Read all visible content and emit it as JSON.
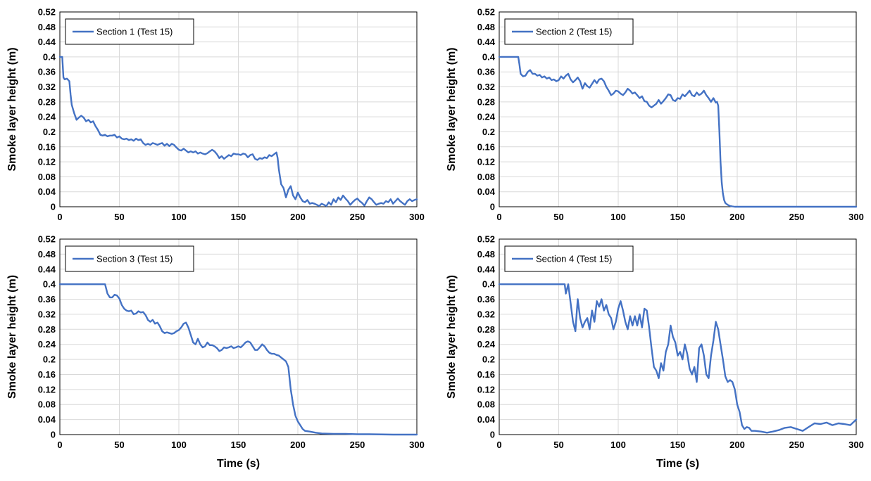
{
  "chart_data": [
    {
      "type": "line",
      "xlabel": "",
      "ylabel": "Smoke layer height (m)",
      "xlim": [
        0,
        300
      ],
      "ylim": [
        0,
        0.52
      ],
      "xticks": [
        "0",
        "50",
        "100",
        "150",
        "200",
        "250",
        "300"
      ],
      "yticks": [
        "0",
        "0.04",
        "0.08",
        "0.12",
        "0.16",
        "0.2",
        "0.24",
        "0.28",
        "0.32",
        "0.36",
        "0.4",
        "0.44",
        "0.48",
        "0.52"
      ],
      "grid": true,
      "legend": "top-left",
      "series": [
        {
          "name": "Section 1 (Test 15)",
          "color": "#4472c4",
          "x": [
            0,
            2,
            3,
            4,
            6,
            8,
            9,
            10,
            12,
            14,
            16,
            18,
            20,
            22,
            24,
            26,
            28,
            30,
            32,
            34,
            36,
            38,
            40,
            42,
            44,
            46,
            48,
            50,
            52,
            54,
            56,
            58,
            60,
            62,
            64,
            66,
            68,
            70,
            72,
            74,
            76,
            78,
            80,
            82,
            84,
            86,
            88,
            90,
            92,
            94,
            96,
            98,
            100,
            102,
            104,
            106,
            108,
            110,
            112,
            114,
            116,
            118,
            120,
            122,
            124,
            126,
            128,
            130,
            132,
            134,
            136,
            138,
            140,
            142,
            144,
            146,
            148,
            150,
            152,
            154,
            156,
            158,
            160,
            162,
            164,
            166,
            168,
            170,
            172,
            174,
            176,
            178,
            180,
            182,
            183,
            184,
            186,
            188,
            190,
            192,
            194,
            196,
            198,
            200,
            202,
            204,
            206,
            208,
            210,
            212,
            214,
            216,
            218,
            220,
            222,
            224,
            226,
            228,
            230,
            232,
            234,
            236,
            238,
            240,
            242,
            244,
            246,
            248,
            250,
            252,
            254,
            256,
            258,
            260,
            262,
            264,
            266,
            268,
            270,
            272,
            274,
            276,
            278,
            280,
            282,
            284,
            286,
            288,
            290,
            292,
            294,
            296,
            298,
            300
          ],
          "y": [
            0.4,
            0.4,
            0.345,
            0.34,
            0.342,
            0.335,
            0.3,
            0.272,
            0.25,
            0.232,
            0.238,
            0.243,
            0.238,
            0.228,
            0.232,
            0.225,
            0.228,
            0.215,
            0.205,
            0.192,
            0.19,
            0.192,
            0.188,
            0.19,
            0.19,
            0.192,
            0.185,
            0.188,
            0.182,
            0.18,
            0.182,
            0.178,
            0.18,
            0.176,
            0.182,
            0.178,
            0.18,
            0.17,
            0.165,
            0.168,
            0.165,
            0.17,
            0.168,
            0.165,
            0.168,
            0.17,
            0.163,
            0.168,
            0.162,
            0.168,
            0.165,
            0.158,
            0.152,
            0.15,
            0.155,
            0.15,
            0.145,
            0.148,
            0.145,
            0.148,
            0.142,
            0.145,
            0.142,
            0.14,
            0.143,
            0.148,
            0.152,
            0.148,
            0.14,
            0.13,
            0.135,
            0.128,
            0.133,
            0.138,
            0.135,
            0.142,
            0.14,
            0.14,
            0.138,
            0.142,
            0.14,
            0.132,
            0.138,
            0.14,
            0.128,
            0.125,
            0.13,
            0.128,
            0.132,
            0.13,
            0.138,
            0.135,
            0.14,
            0.145,
            0.13,
            0.1,
            0.06,
            0.05,
            0.025,
            0.045,
            0.055,
            0.03,
            0.02,
            0.038,
            0.025,
            0.015,
            0.012,
            0.018,
            0.008,
            0.01,
            0.008,
            0.005,
            0.002,
            0.008,
            0.005,
            0.002,
            0.012,
            0.005,
            0.02,
            0.012,
            0.025,
            0.018,
            0.03,
            0.022,
            0.015,
            0.005,
            0.012,
            0.018,
            0.022,
            0.015,
            0.01,
            0.003,
            0.015,
            0.025,
            0.02,
            0.012,
            0.005,
            0.008,
            0.01,
            0.008,
            0.015,
            0.012,
            0.02,
            0.008,
            0.015,
            0.022,
            0.015,
            0.01,
            0.005,
            0.015,
            0.02,
            0.015,
            0.018,
            0.02
          ]
        }
      ]
    },
    {
      "type": "line",
      "xlabel": "",
      "ylabel": "Smoke layer height (m)",
      "xlim": [
        0,
        300
      ],
      "ylim": [
        0,
        0.52
      ],
      "xticks": [
        "0",
        "50",
        "100",
        "150",
        "200",
        "250",
        "300"
      ],
      "yticks": [
        "0",
        "0.04",
        "0.08",
        "0.12",
        "0.16",
        "0.2",
        "0.24",
        "0.28",
        "0.32",
        "0.36",
        "0.4",
        "0.44",
        "0.48",
        "0.52"
      ],
      "grid": true,
      "legend": "top-left",
      "series": [
        {
          "name": "Section 2 (Test 15)",
          "color": "#4472c4",
          "x": [
            0,
            10,
            16,
            17,
            18,
            20,
            22,
            24,
            26,
            28,
            30,
            32,
            34,
            36,
            38,
            40,
            42,
            44,
            46,
            48,
            50,
            52,
            54,
            56,
            58,
            60,
            62,
            64,
            66,
            68,
            70,
            72,
            74,
            76,
            78,
            80,
            82,
            84,
            86,
            88,
            90,
            92,
            94,
            96,
            98,
            100,
            102,
            104,
            106,
            108,
            110,
            112,
            114,
            116,
            118,
            120,
            122,
            124,
            126,
            128,
            130,
            132,
            134,
            136,
            138,
            140,
            142,
            144,
            146,
            148,
            150,
            152,
            154,
            156,
            158,
            160,
            162,
            164,
            166,
            168,
            170,
            172,
            174,
            176,
            178,
            180,
            182,
            183,
            184,
            185,
            186,
            187,
            188,
            189,
            190,
            192,
            194,
            196,
            198,
            200,
            210,
            230,
            250,
            270,
            300
          ],
          "y": [
            0.4,
            0.4,
            0.4,
            0.38,
            0.355,
            0.348,
            0.35,
            0.36,
            0.365,
            0.355,
            0.355,
            0.35,
            0.352,
            0.345,
            0.348,
            0.342,
            0.345,
            0.338,
            0.34,
            0.335,
            0.338,
            0.348,
            0.342,
            0.35,
            0.355,
            0.34,
            0.332,
            0.338,
            0.345,
            0.335,
            0.315,
            0.33,
            0.322,
            0.318,
            0.328,
            0.338,
            0.33,
            0.34,
            0.342,
            0.335,
            0.32,
            0.31,
            0.298,
            0.302,
            0.31,
            0.308,
            0.302,
            0.298,
            0.305,
            0.315,
            0.31,
            0.302,
            0.305,
            0.298,
            0.29,
            0.295,
            0.282,
            0.28,
            0.27,
            0.265,
            0.27,
            0.275,
            0.285,
            0.275,
            0.282,
            0.29,
            0.3,
            0.298,
            0.285,
            0.282,
            0.29,
            0.288,
            0.3,
            0.295,
            0.302,
            0.31,
            0.298,
            0.295,
            0.305,
            0.298,
            0.302,
            0.31,
            0.298,
            0.29,
            0.28,
            0.29,
            0.278,
            0.28,
            0.27,
            0.2,
            0.12,
            0.065,
            0.035,
            0.018,
            0.01,
            0.005,
            0.002,
            0.001,
            0.0,
            0.0,
            0.0,
            0.0,
            0.0,
            0.0,
            0.0
          ]
        }
      ]
    },
    {
      "type": "line",
      "xlabel": "Time (s)",
      "ylabel": "Smoke layer height (m)",
      "xlim": [
        0,
        300
      ],
      "ylim": [
        0,
        0.52
      ],
      "xticks": [
        "0",
        "50",
        "100",
        "150",
        "200",
        "250",
        "300"
      ],
      "yticks": [
        "0",
        "0.04",
        "0.08",
        "0.12",
        "0.16",
        "0.2",
        "0.24",
        "0.28",
        "0.32",
        "0.36",
        "0.4",
        "0.44",
        "0.48",
        "0.52"
      ],
      "grid": true,
      "legend": "top-left",
      "series": [
        {
          "name": "Section 3 (Test 15)",
          "color": "#4472c4",
          "x": [
            0,
            20,
            38,
            40,
            42,
            44,
            46,
            48,
            50,
            52,
            54,
            56,
            58,
            60,
            62,
            64,
            66,
            68,
            70,
            72,
            74,
            76,
            78,
            80,
            82,
            84,
            86,
            88,
            90,
            92,
            94,
            96,
            98,
            100,
            102,
            104,
            106,
            108,
            110,
            112,
            114,
            116,
            118,
            120,
            122,
            124,
            126,
            128,
            130,
            132,
            134,
            136,
            138,
            140,
            142,
            144,
            146,
            148,
            150,
            152,
            154,
            156,
            158,
            160,
            162,
            164,
            166,
            168,
            170,
            172,
            174,
            176,
            178,
            180,
            182,
            184,
            186,
            188,
            190,
            192,
            193,
            194,
            195,
            196,
            198,
            200,
            202,
            204,
            206,
            210,
            215,
            220,
            230,
            240,
            250,
            260,
            280,
            300
          ],
          "y": [
            0.4,
            0.4,
            0.4,
            0.375,
            0.365,
            0.365,
            0.372,
            0.37,
            0.362,
            0.345,
            0.335,
            0.33,
            0.328,
            0.33,
            0.32,
            0.322,
            0.328,
            0.325,
            0.326,
            0.318,
            0.305,
            0.3,
            0.305,
            0.295,
            0.298,
            0.288,
            0.275,
            0.27,
            0.272,
            0.27,
            0.268,
            0.27,
            0.275,
            0.278,
            0.285,
            0.295,
            0.298,
            0.285,
            0.265,
            0.245,
            0.24,
            0.255,
            0.24,
            0.232,
            0.235,
            0.245,
            0.238,
            0.238,
            0.235,
            0.23,
            0.222,
            0.225,
            0.232,
            0.23,
            0.232,
            0.235,
            0.23,
            0.232,
            0.235,
            0.232,
            0.238,
            0.245,
            0.248,
            0.245,
            0.235,
            0.225,
            0.225,
            0.232,
            0.24,
            0.235,
            0.225,
            0.218,
            0.215,
            0.215,
            0.212,
            0.21,
            0.205,
            0.2,
            0.195,
            0.18,
            0.15,
            0.12,
            0.1,
            0.08,
            0.05,
            0.035,
            0.025,
            0.015,
            0.01,
            0.008,
            0.005,
            0.003,
            0.002,
            0.002,
            0.001,
            0.001,
            0.0,
            0.0
          ]
        }
      ]
    },
    {
      "type": "line",
      "xlabel": "Time (s)",
      "ylabel": "Smoke layer height (m)",
      "xlim": [
        0,
        300
      ],
      "ylim": [
        0,
        0.52
      ],
      "xticks": [
        "0",
        "50",
        "100",
        "150",
        "200",
        "250",
        "300"
      ],
      "yticks": [
        "0",
        "0.04",
        "0.08",
        "0.12",
        "0.16",
        "0.2",
        "0.24",
        "0.28",
        "0.32",
        "0.36",
        "0.4",
        "0.44",
        "0.48",
        "0.52"
      ],
      "grid": true,
      "legend": "top-left",
      "series": [
        {
          "name": "Section 4 (Test 15)",
          "color": "#4472c4",
          "x": [
            0,
            30,
            55,
            56,
            58,
            60,
            62,
            64,
            65,
            66,
            68,
            70,
            72,
            74,
            76,
            78,
            80,
            82,
            84,
            86,
            88,
            90,
            92,
            94,
            96,
            98,
            100,
            102,
            104,
            106,
            108,
            110,
            112,
            114,
            116,
            118,
            120,
            122,
            124,
            126,
            128,
            130,
            132,
            134,
            136,
            138,
            140,
            142,
            144,
            146,
            148,
            150,
            152,
            154,
            156,
            158,
            160,
            162,
            164,
            166,
            168,
            170,
            172,
            174,
            176,
            178,
            180,
            182,
            184,
            186,
            188,
            190,
            192,
            194,
            196,
            198,
            200,
            202,
            204,
            206,
            208,
            210,
            212,
            215,
            220,
            225,
            230,
            235,
            240,
            245,
            250,
            255,
            260,
            265,
            270,
            275,
            280,
            285,
            290,
            295,
            300
          ],
          "y": [
            0.4,
            0.4,
            0.4,
            0.375,
            0.4,
            0.35,
            0.3,
            0.275,
            0.32,
            0.36,
            0.31,
            0.285,
            0.3,
            0.31,
            0.28,
            0.33,
            0.3,
            0.355,
            0.34,
            0.36,
            0.33,
            0.345,
            0.32,
            0.31,
            0.28,
            0.3,
            0.335,
            0.355,
            0.33,
            0.3,
            0.28,
            0.315,
            0.29,
            0.315,
            0.29,
            0.32,
            0.285,
            0.335,
            0.33,
            0.285,
            0.23,
            0.18,
            0.17,
            0.15,
            0.19,
            0.17,
            0.22,
            0.24,
            0.29,
            0.26,
            0.245,
            0.21,
            0.22,
            0.2,
            0.24,
            0.215,
            0.175,
            0.16,
            0.18,
            0.14,
            0.23,
            0.24,
            0.21,
            0.16,
            0.15,
            0.21,
            0.25,
            0.3,
            0.28,
            0.24,
            0.2,
            0.155,
            0.14,
            0.145,
            0.14,
            0.12,
            0.08,
            0.06,
            0.025,
            0.015,
            0.02,
            0.018,
            0.01,
            0.01,
            0.008,
            0.005,
            0.008,
            0.012,
            0.018,
            0.02,
            0.015,
            0.01,
            0.02,
            0.03,
            0.028,
            0.032,
            0.025,
            0.03,
            0.028,
            0.025,
            0.04
          ]
        }
      ]
    }
  ]
}
